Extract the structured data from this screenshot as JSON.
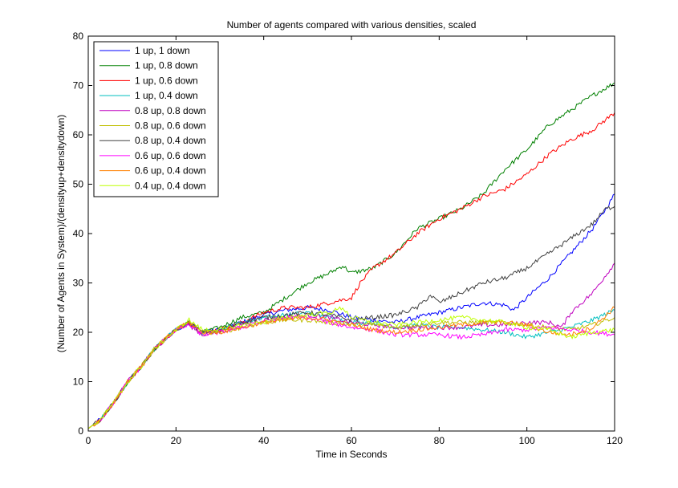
{
  "chart_data": {
    "type": "line",
    "title": "Number of agents compared with various densities, scaled",
    "xlabel": "Time in Seconds",
    "ylabel": "(Number of Agents in System)/(densityup+densitydown)",
    "xlim": [
      0,
      120
    ],
    "ylim": [
      0,
      80
    ],
    "xticks": [
      0,
      20,
      40,
      60,
      80,
      100,
      120
    ],
    "yticks": [
      0,
      10,
      20,
      30,
      40,
      50,
      60,
      70,
      80
    ],
    "grid": false,
    "legend_position": "top-left",
    "series": [
      {
        "name": "1 up, 1 down",
        "color": "#0000ff",
        "points": [
          [
            0,
            0.5
          ],
          [
            3,
            2.5
          ],
          [
            6,
            6
          ],
          [
            9,
            10
          ],
          [
            12,
            13
          ],
          [
            15,
            16.5
          ],
          [
            18,
            19
          ],
          [
            20,
            20.5
          ],
          [
            23,
            22
          ],
          [
            26,
            20
          ],
          [
            30,
            20.5
          ],
          [
            35,
            22
          ],
          [
            40,
            23.5
          ],
          [
            45,
            24.5
          ],
          [
            50,
            25
          ],
          [
            55,
            24.5
          ],
          [
            60,
            23
          ],
          [
            65,
            22.5
          ],
          [
            70,
            22
          ],
          [
            75,
            23
          ],
          [
            80,
            24
          ],
          [
            85,
            25
          ],
          [
            90,
            26
          ],
          [
            95,
            25.5
          ],
          [
            97,
            24.5
          ],
          [
            100,
            27
          ],
          [
            105,
            31
          ],
          [
            110,
            36
          ],
          [
            115,
            41
          ],
          [
            118,
            45
          ],
          [
            120,
            48
          ]
        ]
      },
      {
        "name": "1 up, 0.8 down",
        "color": "#008000",
        "points": [
          [
            0,
            0.5
          ],
          [
            3,
            2.5
          ],
          [
            6,
            6
          ],
          [
            9,
            10
          ],
          [
            12,
            13
          ],
          [
            15,
            16.5
          ],
          [
            18,
            19
          ],
          [
            20,
            20.5
          ],
          [
            23,
            22
          ],
          [
            26,
            20
          ],
          [
            30,
            21
          ],
          [
            35,
            23
          ],
          [
            40,
            24
          ],
          [
            45,
            27
          ],
          [
            50,
            30
          ],
          [
            55,
            32
          ],
          [
            58,
            33.5
          ],
          [
            60,
            32
          ],
          [
            65,
            33
          ],
          [
            70,
            36
          ],
          [
            75,
            41
          ],
          [
            80,
            43
          ],
          [
            85,
            45
          ],
          [
            90,
            48
          ],
          [
            95,
            53
          ],
          [
            100,
            57
          ],
          [
            105,
            62
          ],
          [
            110,
            65
          ],
          [
            115,
            68
          ],
          [
            120,
            70.5
          ]
        ]
      },
      {
        "name": "1 up, 0.6 down",
        "color": "#ff0000",
        "points": [
          [
            0,
            0.5
          ],
          [
            3,
            2.5
          ],
          [
            6,
            6
          ],
          [
            9,
            10
          ],
          [
            12,
            13
          ],
          [
            15,
            16.5
          ],
          [
            18,
            19
          ],
          [
            20,
            20.5
          ],
          [
            23,
            22
          ],
          [
            26,
            20
          ],
          [
            30,
            20.5
          ],
          [
            35,
            22
          ],
          [
            40,
            24
          ],
          [
            45,
            25
          ],
          [
            50,
            25
          ],
          [
            55,
            26
          ],
          [
            60,
            27
          ],
          [
            62,
            30
          ],
          [
            65,
            33
          ],
          [
            70,
            36
          ],
          [
            75,
            40
          ],
          [
            80,
            43
          ],
          [
            85,
            45
          ],
          [
            90,
            47.5
          ],
          [
            95,
            49
          ],
          [
            100,
            52
          ],
          [
            105,
            56
          ],
          [
            110,
            59
          ],
          [
            115,
            61
          ],
          [
            120,
            64.5
          ]
        ]
      },
      {
        "name": "1 up, 0.4 down",
        "color": "#00bfbf",
        "points": [
          [
            0,
            0.5
          ],
          [
            3,
            2.5
          ],
          [
            6,
            6
          ],
          [
            9,
            10
          ],
          [
            12,
            13
          ],
          [
            15,
            16.5
          ],
          [
            18,
            19
          ],
          [
            20,
            20.5
          ],
          [
            23,
            22
          ],
          [
            26,
            20
          ],
          [
            30,
            20.5
          ],
          [
            35,
            22
          ],
          [
            40,
            23
          ],
          [
            45,
            23.5
          ],
          [
            50,
            24
          ],
          [
            55,
            23
          ],
          [
            60,
            22
          ],
          [
            65,
            22
          ],
          [
            70,
            21
          ],
          [
            75,
            21.5
          ],
          [
            80,
            21
          ],
          [
            85,
            21
          ],
          [
            90,
            20.5
          ],
          [
            95,
            20
          ],
          [
            100,
            19
          ],
          [
            105,
            20
          ],
          [
            110,
            21
          ],
          [
            115,
            22.5
          ],
          [
            120,
            24.5
          ]
        ]
      },
      {
        "name": "0.8 up, 0.8 down",
        "color": "#bf00bf",
        "points": [
          [
            0,
            0.5
          ],
          [
            3,
            2.5
          ],
          [
            6,
            6
          ],
          [
            9,
            10
          ],
          [
            12,
            13
          ],
          [
            15,
            16.5
          ],
          [
            18,
            19
          ],
          [
            20,
            20.5
          ],
          [
            23,
            21.5
          ],
          [
            26,
            19.5
          ],
          [
            30,
            20
          ],
          [
            35,
            21.5
          ],
          [
            40,
            22.5
          ],
          [
            45,
            23
          ],
          [
            50,
            23.5
          ],
          [
            55,
            23
          ],
          [
            60,
            22
          ],
          [
            65,
            21.5
          ],
          [
            70,
            21
          ],
          [
            75,
            21
          ],
          [
            80,
            21
          ],
          [
            85,
            21
          ],
          [
            90,
            21.5
          ],
          [
            95,
            21.5
          ],
          [
            100,
            22
          ],
          [
            105,
            22
          ],
          [
            108,
            21
          ],
          [
            110,
            24
          ],
          [
            115,
            28
          ],
          [
            120,
            34
          ]
        ]
      },
      {
        "name": "0.8 up, 0.6 down",
        "color": "#bfbf00",
        "points": [
          [
            0,
            0.5
          ],
          [
            3,
            2.5
          ],
          [
            6,
            6
          ],
          [
            9,
            10
          ],
          [
            12,
            13
          ],
          [
            15,
            16.5
          ],
          [
            18,
            19
          ],
          [
            20,
            20.5
          ],
          [
            23,
            22
          ],
          [
            26,
            20
          ],
          [
            30,
            20
          ],
          [
            35,
            21
          ],
          [
            40,
            22
          ],
          [
            45,
            22.5
          ],
          [
            50,
            22.5
          ],
          [
            55,
            22
          ],
          [
            60,
            21.5
          ],
          [
            65,
            21.5
          ],
          [
            70,
            21
          ],
          [
            75,
            21.5
          ],
          [
            80,
            22
          ],
          [
            85,
            22
          ],
          [
            90,
            22
          ],
          [
            95,
            22
          ],
          [
            100,
            21.5
          ],
          [
            105,
            21
          ],
          [
            110,
            20.5
          ],
          [
            115,
            21.5
          ],
          [
            120,
            23
          ]
        ]
      },
      {
        "name": "0.8 up, 0.4 down",
        "color": "#404040",
        "points": [
          [
            0,
            0.5
          ],
          [
            3,
            2.5
          ],
          [
            6,
            6
          ],
          [
            9,
            10
          ],
          [
            12,
            13
          ],
          [
            15,
            16.5
          ],
          [
            18,
            19
          ],
          [
            20,
            20.5
          ],
          [
            23,
            22
          ],
          [
            26,
            20
          ],
          [
            30,
            20.5
          ],
          [
            35,
            22
          ],
          [
            40,
            23
          ],
          [
            45,
            23.5
          ],
          [
            50,
            24
          ],
          [
            55,
            23.5
          ],
          [
            60,
            22.5
          ],
          [
            65,
            23
          ],
          [
            70,
            23.5
          ],
          [
            75,
            25
          ],
          [
            78,
            27.5
          ],
          [
            80,
            26
          ],
          [
            85,
            28
          ],
          [
            90,
            30
          ],
          [
            95,
            31
          ],
          [
            100,
            33
          ],
          [
            105,
            36
          ],
          [
            110,
            39
          ],
          [
            115,
            42
          ],
          [
            118,
            45
          ],
          [
            120,
            45.5
          ]
        ]
      },
      {
        "name": "0.6 up, 0.6 down",
        "color": "#ff00ff",
        "points": [
          [
            0,
            0.5
          ],
          [
            3,
            2.5
          ],
          [
            6,
            6
          ],
          [
            9,
            10
          ],
          [
            12,
            13
          ],
          [
            15,
            16.5
          ],
          [
            18,
            19
          ],
          [
            20,
            20.5
          ],
          [
            23,
            21.5
          ],
          [
            26,
            19.5
          ],
          [
            30,
            20
          ],
          [
            35,
            21
          ],
          [
            40,
            22
          ],
          [
            45,
            23
          ],
          [
            50,
            23
          ],
          [
            55,
            22
          ],
          [
            60,
            21
          ],
          [
            65,
            20.5
          ],
          [
            70,
            19.5
          ],
          [
            75,
            19.5
          ],
          [
            80,
            19.5
          ],
          [
            85,
            19
          ],
          [
            90,
            19.5
          ],
          [
            95,
            20.5
          ],
          [
            100,
            20.5
          ],
          [
            105,
            21
          ],
          [
            110,
            20.5
          ],
          [
            115,
            20
          ],
          [
            120,
            19.5
          ]
        ]
      },
      {
        "name": "0.6 up, 0.4 down",
        "color": "#ff8000",
        "points": [
          [
            0,
            0.5
          ],
          [
            3,
            2.5
          ],
          [
            6,
            6
          ],
          [
            9,
            10
          ],
          [
            12,
            13
          ],
          [
            15,
            16.5
          ],
          [
            18,
            19
          ],
          [
            20,
            20.5
          ],
          [
            23,
            22
          ],
          [
            26,
            20
          ],
          [
            30,
            20
          ],
          [
            35,
            21
          ],
          [
            40,
            22
          ],
          [
            45,
            22.5
          ],
          [
            50,
            23
          ],
          [
            55,
            22.5
          ],
          [
            60,
            21.5
          ],
          [
            65,
            20.5
          ],
          [
            70,
            20
          ],
          [
            75,
            20.5
          ],
          [
            80,
            21
          ],
          [
            85,
            21.5
          ],
          [
            90,
            22
          ],
          [
            95,
            22
          ],
          [
            100,
            21.5
          ],
          [
            105,
            20
          ],
          [
            110,
            19.5
          ],
          [
            115,
            21
          ],
          [
            120,
            25
          ]
        ]
      },
      {
        "name": "0.4 up, 0.4 down",
        "color": "#bfff00",
        "points": [
          [
            0,
            0.5
          ],
          [
            3,
            2.5
          ],
          [
            6,
            6
          ],
          [
            9,
            10
          ],
          [
            12,
            13
          ],
          [
            15,
            16.5
          ],
          [
            18,
            19
          ],
          [
            20,
            20.5
          ],
          [
            23,
            22.5
          ],
          [
            26,
            20.5
          ],
          [
            30,
            20.5
          ],
          [
            35,
            21.5
          ],
          [
            40,
            22
          ],
          [
            45,
            23
          ],
          [
            50,
            23.5
          ],
          [
            55,
            24
          ],
          [
            58,
            25
          ],
          [
            60,
            23
          ],
          [
            65,
            22
          ],
          [
            70,
            21.5
          ],
          [
            75,
            22
          ],
          [
            80,
            22.5
          ],
          [
            85,
            23
          ],
          [
            90,
            22.5
          ],
          [
            95,
            22
          ],
          [
            100,
            21
          ],
          [
            105,
            20.5
          ],
          [
            110,
            19
          ],
          [
            115,
            20
          ],
          [
            120,
            20.5
          ]
        ]
      }
    ]
  }
}
